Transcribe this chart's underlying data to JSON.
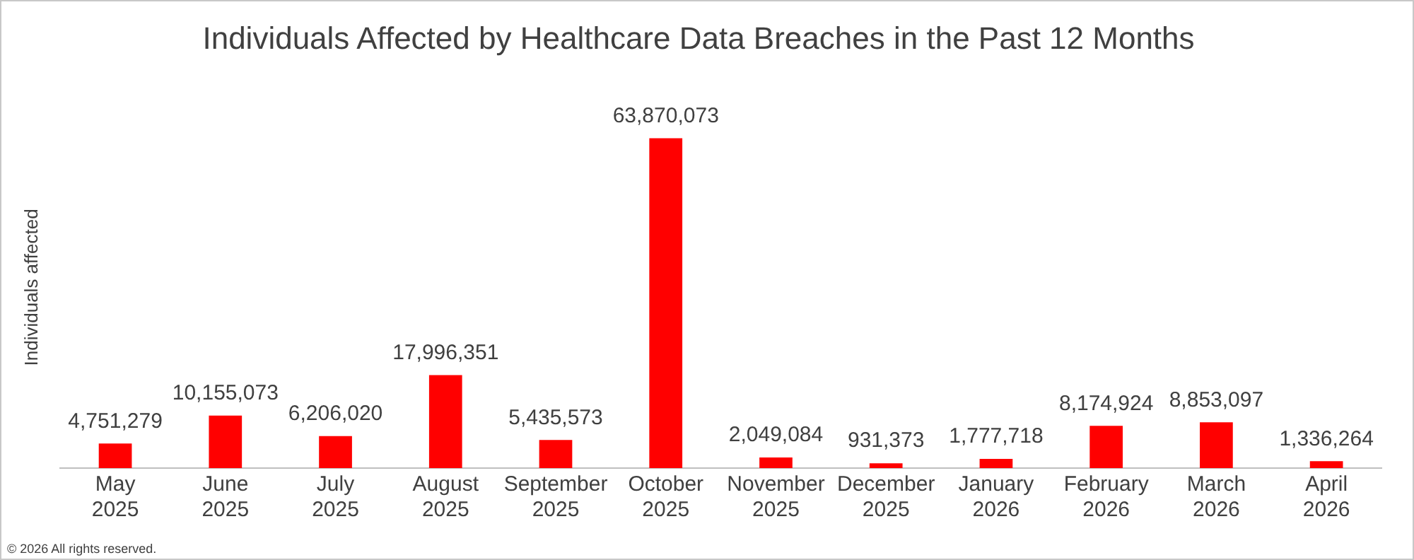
{
  "chart_data": {
    "type": "bar",
    "title": "Individuals Affected by Healthcare Data Breaches in the Past 12 Months",
    "ylabel": "Individuals affected",
    "categories": [
      "May 2025",
      "June 2025",
      "July 2025",
      "August 2025",
      "September 2025",
      "October 2025",
      "November 2025",
      "December 2025",
      "January 2026",
      "February 2026",
      "March 2026",
      "April 2026"
    ],
    "values": [
      4751279,
      10155073,
      6206020,
      17996351,
      5435573,
      63870073,
      2049084,
      931373,
      1777718,
      8174924,
      8853097,
      1336264
    ],
    "value_labels": [
      "4,751,279",
      "10,155,073",
      "6,206,020",
      "17,996,351",
      "5,435,573",
      "63,870,073",
      "2,049,084",
      "931,373",
      "1,777,718",
      "8,174,924",
      "8,853,097",
      "1,336,264"
    ],
    "color": "#ff0000",
    "grid": false,
    "legend": false,
    "tick_labels": "x",
    "annotations": [
      "© 2026 All rights reserved."
    ]
  }
}
